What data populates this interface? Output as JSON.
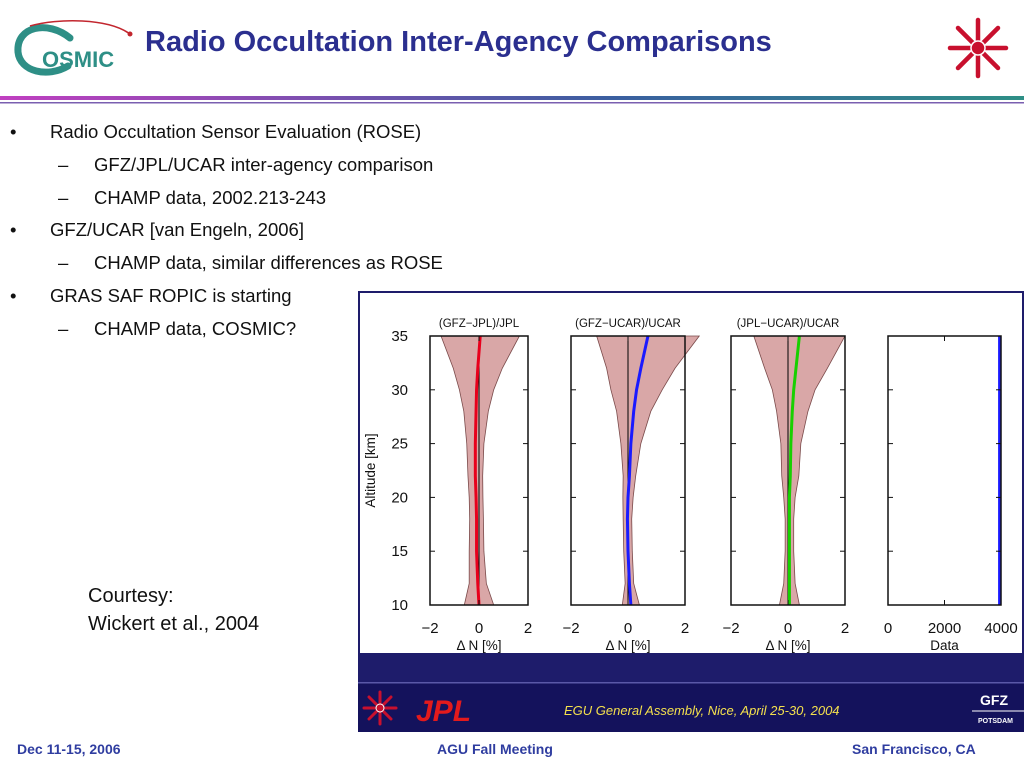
{
  "slide": {
    "title": "Radio Occultation Inter-Agency Comparisons",
    "logo_text": "OSMIC",
    "bullets": [
      {
        "text": "Radio Occultation Sensor Evaluation (ROSE)",
        "children": [
          "GFZ/JPL/UCAR inter-agency comparison",
          "CHAMP data, 2002.213-243"
        ]
      },
      {
        "text": "GFZ/UCAR [van Engeln, 2006]",
        "children": [
          "CHAMP data, similar differences as ROSE"
        ]
      },
      {
        "text": "GRAS SAF ROPIC is starting",
        "children": [
          "CHAMP data, COSMIC?"
        ]
      }
    ],
    "bullet_marker": "•",
    "sub_marker": "–",
    "courtesy": {
      "line1": "Courtesy:",
      "line2": "Wickert et al., 2004"
    },
    "footer": {
      "left": "Dec 11-15, 2006",
      "center": "AGU Fall Meeting",
      "right": "San Francisco, CA"
    }
  },
  "figure": {
    "banner_text": "EGU General Assembly, Nice, April 25-30, 2004",
    "jpl_text": "JPL",
    "gfz_text": "GFZ",
    "gfz_sub": "POTSDAM",
    "colors": {
      "title": "#2b2f8f",
      "footer": "#2f3da0",
      "navy": "#1e1c6b",
      "envelope": "#d9a7a7",
      "banner_text": "#f4e04d",
      "jpl": "#e31a1c"
    }
  },
  "chart_data": {
    "type": "line",
    "ylabel": "Altitude [km]",
    "ylim": [
      10,
      35
    ],
    "yticks": [
      "10",
      "15",
      "20",
      "25",
      "30",
      "35"
    ],
    "panels": [
      {
        "title": "(GFZ−JPL)/JPL",
        "xlabel": "Δ N [%]",
        "xlim": [
          -2,
          2
        ],
        "xticks": [
          "−2",
          "0",
          "2"
        ],
        "color": "#e8001c",
        "style": "line_envelope",
        "altitude": [
          10,
          12,
          15,
          18,
          20,
          22,
          25,
          28,
          30,
          32,
          35
        ],
        "mean": [
          0.0,
          -0.05,
          -0.1,
          -0.1,
          -0.12,
          -0.15,
          -0.15,
          -0.12,
          -0.1,
          -0.05,
          0.05
        ],
        "sigma": [
          0.6,
          0.35,
          0.3,
          0.28,
          0.28,
          0.3,
          0.35,
          0.5,
          0.7,
          1.0,
          1.6
        ]
      },
      {
        "title": "(GFZ−UCAR)/UCAR",
        "xlabel": "Δ N [%]",
        "xlim": [
          -2,
          2
        ],
        "xticks": [
          "−2",
          "0",
          "2"
        ],
        "color": "#1a1aff",
        "style": "line_envelope",
        "altitude": [
          10,
          12,
          15,
          18,
          20,
          22,
          25,
          28,
          30,
          32,
          35
        ],
        "mean": [
          0.1,
          0.05,
          0.0,
          -0.02,
          0.0,
          0.05,
          0.1,
          0.2,
          0.3,
          0.45,
          0.7
        ],
        "sigma": [
          0.3,
          0.15,
          0.15,
          0.15,
          0.18,
          0.22,
          0.35,
          0.6,
          0.9,
          1.2,
          1.8
        ]
      },
      {
        "title": "(JPL−UCAR)/UCAR",
        "xlabel": "Δ N [%]",
        "xlim": [
          -2,
          2
        ],
        "xticks": [
          "−2",
          "0",
          "2"
        ],
        "color": "#18d000",
        "style": "line_envelope",
        "altitude": [
          10,
          12,
          15,
          18,
          20,
          22,
          25,
          28,
          30,
          32,
          35
        ],
        "mean": [
          0.05,
          0.05,
          0.05,
          0.05,
          0.05,
          0.08,
          0.1,
          0.15,
          0.2,
          0.28,
          0.4
        ],
        "sigma": [
          0.35,
          0.2,
          0.15,
          0.15,
          0.2,
          0.3,
          0.35,
          0.55,
          0.75,
          1.1,
          1.6
        ]
      },
      {
        "title": "",
        "xlabel": "Data",
        "xlim": [
          0,
          4000
        ],
        "xticks": [
          "0",
          "2000",
          "4000"
        ],
        "color": "#1a1aff",
        "style": "count",
        "altitude": [
          10,
          35
        ],
        "count": [
          3950,
          3950
        ]
      }
    ]
  }
}
